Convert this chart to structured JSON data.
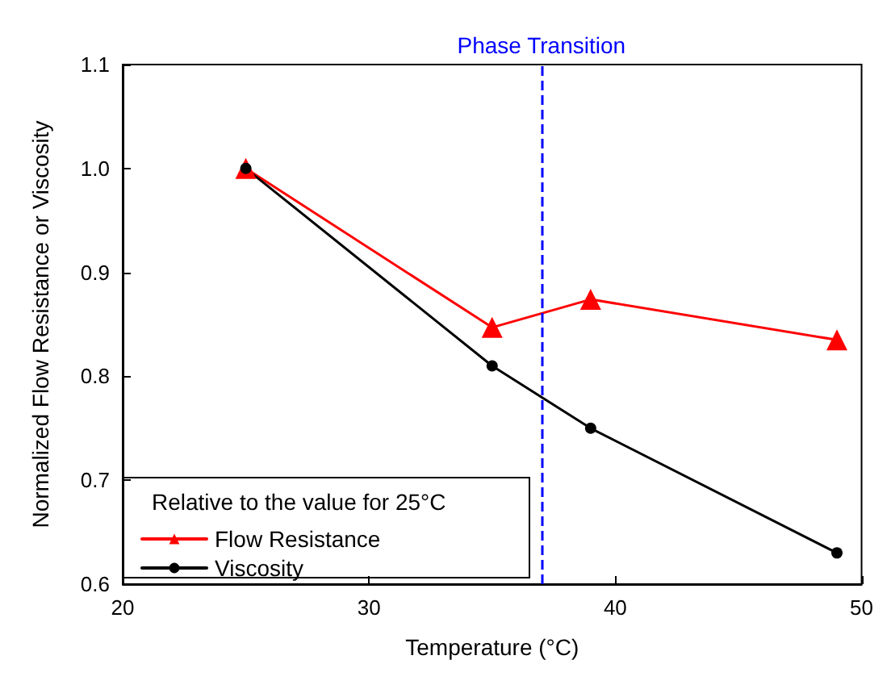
{
  "chart_data": {
    "type": "line",
    "xlabel": "Temperature (°C)",
    "ylabel": "Normalized Flow Resistance or Viscosity",
    "legend_title": "Relative to the value for 25°C",
    "x": [
      25,
      35,
      39,
      49
    ],
    "series": [
      {
        "name": "Flow Resistance",
        "color": "#ff0000",
        "marker": "triangle",
        "values": [
          1.0,
          0.847,
          0.874,
          0.835
        ]
      },
      {
        "name": "Viscosity",
        "color": "#000000",
        "marker": "circle",
        "values": [
          1.0,
          0.81,
          0.75,
          0.63
        ]
      }
    ],
    "xlim": [
      20,
      50
    ],
    "xticks": [
      20,
      30,
      40,
      50
    ],
    "ylim": [
      0.6,
      1.1
    ],
    "yticks": [
      {
        "value": 0.6,
        "label": "0.6"
      },
      {
        "value": 0.7,
        "label": "0.7"
      },
      {
        "value": 0.8,
        "label": "0.8"
      },
      {
        "value": 0.9,
        "label": "0.9"
      },
      {
        "value": 1,
        "label": "1.0"
      },
      {
        "value": 1.1,
        "label": "1.1"
      }
    ],
    "ref_lines": [
      {
        "axis": "x",
        "value": 37,
        "label": "Phase Transition",
        "color": "#0000ff",
        "line_style": "dashed"
      }
    ],
    "legend": "bottom left",
    "grid": false,
    "line_style": "solid"
  }
}
